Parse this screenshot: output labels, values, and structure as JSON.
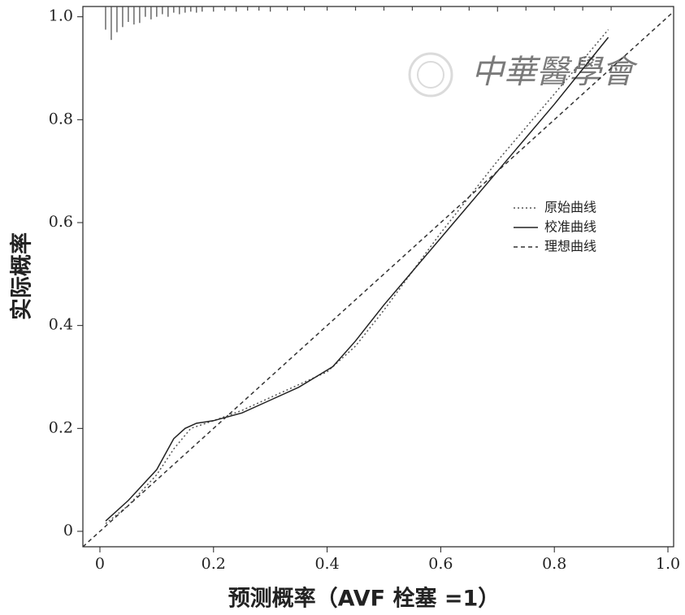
{
  "chart_data": {
    "type": "line",
    "xlabel": "预测概率（AVF 栓塞 =1）",
    "ylabel": "实际概率",
    "watermark": "中華醫學會",
    "xlim": [
      -0.03,
      1.01
    ],
    "ylim": [
      -0.03,
      1.02
    ],
    "xticks": [
      0,
      0.2,
      0.4,
      0.6,
      0.8,
      {
        "value": 1,
        "label": "1.0"
      }
    ],
    "yticks": [
      0,
      0.2,
      0.4,
      0.6,
      0.8,
      {
        "value": 1,
        "label": "1.0"
      }
    ],
    "legend": "right",
    "series": [
      {
        "name": "原始曲线",
        "color": "#555555",
        "dash": "dotted",
        "x": [
          0.01,
          0.05,
          0.1,
          0.13,
          0.16,
          0.2,
          0.25,
          0.3,
          0.35,
          0.4,
          0.45,
          0.5,
          0.6,
          0.7,
          0.8,
          0.895
        ],
        "values": [
          0.015,
          0.05,
          0.11,
          0.16,
          0.2,
          0.215,
          0.235,
          0.26,
          0.285,
          0.31,
          0.36,
          0.43,
          0.58,
          0.72,
          0.85,
          0.975
        ]
      },
      {
        "name": "校准曲线",
        "color": "#222222",
        "dash": "solid",
        "x": [
          0.01,
          0.05,
          0.1,
          0.13,
          0.15,
          0.17,
          0.2,
          0.25,
          0.3,
          0.35,
          0.38,
          0.41,
          0.45,
          0.5,
          0.6,
          0.7,
          0.8,
          0.895
        ],
        "values": [
          0.02,
          0.06,
          0.12,
          0.18,
          0.2,
          0.21,
          0.215,
          0.23,
          0.255,
          0.28,
          0.3,
          0.32,
          0.37,
          0.44,
          0.57,
          0.7,
          0.83,
          0.96
        ]
      },
      {
        "name": "理想曲线",
        "color": "#333333",
        "dash": "dashed",
        "x": [
          -0.03,
          1.01
        ],
        "values": [
          -0.03,
          1.01
        ]
      }
    ],
    "rug": {
      "color": "#444444",
      "x": [
        0.01,
        0.02,
        0.03,
        0.04,
        0.05,
        0.06,
        0.07,
        0.08,
        0.09,
        0.1,
        0.11,
        0.12,
        0.13,
        0.14,
        0.15,
        0.16,
        0.17,
        0.18,
        0.2,
        0.22,
        0.24,
        0.26,
        0.28,
        0.3,
        0.33,
        0.36,
        0.4,
        0.45,
        0.5,
        0.55,
        0.6,
        0.65,
        0.7,
        0.75,
        0.8,
        0.85,
        0.9
      ],
      "lengths": [
        0.045,
        0.065,
        0.05,
        0.04,
        0.03,
        0.035,
        0.032,
        0.02,
        0.025,
        0.02,
        0.015,
        0.02,
        0.012,
        0.015,
        0.012,
        0.01,
        0.012,
        0.01,
        0.01,
        0.008,
        0.01,
        0.008,
        0.008,
        0.01,
        0.008,
        0.008,
        0.008,
        0.008,
        0.008,
        0.008,
        0.008,
        0.008,
        0.01,
        0.008,
        0.008,
        0.008,
        0.008
      ]
    }
  }
}
